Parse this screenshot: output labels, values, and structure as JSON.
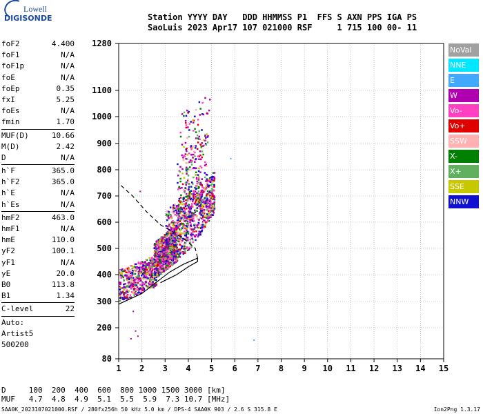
{
  "logo": {
    "line1": "Lowell",
    "line2": "DIGISONDE"
  },
  "header": {
    "line1": "Station YYYY DAY   DDD HHMMSS P1  FFS S AXN PPS IGA PS",
    "line2": "SaoLuis 2023 Apr17 107 021000 RSF     1 715 100 00- 11"
  },
  "params": [
    {
      "name": "foF2",
      "value": "4.400"
    },
    {
      "name": "foF1",
      "value": "N/A"
    },
    {
      "name": "foF1p",
      "value": "N/A"
    },
    {
      "name": "foE",
      "value": "N/A"
    },
    {
      "name": "foEp",
      "value": "0.35"
    },
    {
      "name": "fxI",
      "value": "5.25"
    },
    {
      "name": "foEs",
      "value": "N/A"
    },
    {
      "name": "fmin",
      "value": "1.70"
    },
    {
      "sep": true
    },
    {
      "name": "MUF(D)",
      "value": "10.66"
    },
    {
      "name": "M(D)",
      "value": "2.42"
    },
    {
      "name": "D",
      "value": "N/A"
    },
    {
      "sep": true
    },
    {
      "name": "h`F",
      "value": "365.0"
    },
    {
      "name": "h`F2",
      "value": "365.0"
    },
    {
      "name": "h`E",
      "value": "N/A"
    },
    {
      "name": "h`Es",
      "value": "N/A"
    },
    {
      "sep": true
    },
    {
      "name": "hmF2",
      "value": "463.0"
    },
    {
      "name": "hmF1",
      "value": "N/A"
    },
    {
      "name": "hmE",
      "value": "110.0"
    },
    {
      "name": "yF2",
      "value": "100.1"
    },
    {
      "name": "yF1",
      "value": "N/A"
    },
    {
      "name": "yE",
      "value": "20.0"
    },
    {
      "name": "B0",
      "value": "113.8"
    },
    {
      "name": "B1",
      "value": "1.34"
    },
    {
      "sep": true
    },
    {
      "name": "C-level",
      "value": "22"
    },
    {
      "sep": true
    },
    {
      "name": "Auto:",
      "value": ""
    },
    {
      "name": "Artist5",
      "value": ""
    },
    {
      "name": "500200",
      "value": ""
    }
  ],
  "legend": [
    {
      "label": "NoVal",
      "color": "#a0a0a0"
    },
    {
      "label": "NNE",
      "color": "#00e8ff"
    },
    {
      "label": "E",
      "color": "#40a8ff"
    },
    {
      "label": "W",
      "color": "#b000b0"
    },
    {
      "label": "Vo-",
      "color": "#ff40c0"
    },
    {
      "label": "Vo+",
      "color": "#e00000"
    },
    {
      "label": "SSW",
      "color": "#ffb0b0"
    },
    {
      "label": "X-",
      "color": "#008000"
    },
    {
      "label": "X+",
      "color": "#60b060"
    },
    {
      "label": "SSE",
      "color": "#c8c800"
    },
    {
      "label": "NNW",
      "color": "#1010d0"
    }
  ],
  "muf_table": {
    "row1": "D     100  200  400  600  800 1000 1500 3000 [km]",
    "row2": "MUF   4.7  4.8  4.9  5.1  5.5  5.9  7.3 10.7 [MHz]"
  },
  "footer": {
    "left": "SAA0K_2023107021000.RSF / 280fx256h 50 kHz 5.0 km / DPS-4 SAA0K 903 / 2.6 S 315.8 E",
    "right": "Ion2Png 1.3.17"
  },
  "chart_data": {
    "type": "scatter",
    "title": "",
    "xlabel": "",
    "ylabel": "",
    "xlim": [
      1,
      15
    ],
    "ylim": [
      80,
      1280
    ],
    "x_ticks": [
      "1",
      "2",
      "3",
      "4",
      "5",
      "6",
      "7",
      "8",
      "9",
      "10",
      "11",
      "12",
      "13",
      "14",
      "15"
    ],
    "y_ticks": [
      {
        "v": 80,
        "label": "80"
      },
      {
        "v": 200,
        "label": "200"
      },
      {
        "v": 300,
        "label": "300"
      },
      {
        "v": 400,
        "label": "400"
      },
      {
        "v": 500,
        "label": "500"
      },
      {
        "v": 600,
        "label": "600"
      },
      {
        "v": 700,
        "label": "700"
      },
      {
        "v": 800,
        "label": "800"
      },
      {
        "v": 900,
        "label": "900"
      },
      {
        "v": 1000,
        "label": "1000"
      },
      {
        "v": 1100,
        "label": "1100"
      },
      {
        "v": 1280,
        "label": "1280"
      }
    ],
    "y_scale": "log-like ionogram height axis",
    "grid": true,
    "profile_solid": [
      [
        1.0,
        290
      ],
      [
        2.0,
        330
      ],
      [
        2.6,
        370
      ],
      [
        3.2,
        410
      ],
      [
        3.8,
        440
      ],
      [
        4.4,
        463
      ],
      [
        4.4,
        450
      ],
      [
        4.0,
        430
      ],
      [
        3.5,
        400
      ],
      [
        2.8,
        370
      ]
    ],
    "profile_dashed": [
      [
        1.1,
        740
      ],
      [
        1.6,
        700
      ],
      [
        2.2,
        640
      ],
      [
        2.8,
        590
      ],
      [
        3.4,
        560
      ],
      [
        3.9,
        530
      ],
      [
        4.3,
        500
      ],
      [
        4.4,
        463
      ]
    ],
    "echo_clusters": [
      {
        "x_range": [
          1.0,
          2.6
        ],
        "y_range": [
          330,
          450
        ],
        "density": "high"
      },
      {
        "x_range": [
          2.5,
          3.5
        ],
        "y_range": [
          420,
          560
        ],
        "density": "very high"
      },
      {
        "x_range": [
          3.0,
          4.5
        ],
        "y_range": [
          480,
          700
        ],
        "density": "high"
      },
      {
        "x_range": [
          3.5,
          4.8
        ],
        "y_range": [
          600,
          900
        ],
        "density": "medium"
      },
      {
        "x_range": [
          3.6,
          4.9
        ],
        "y_range": [
          880,
          1050
        ],
        "density": "low"
      },
      {
        "x_range": [
          4.5,
          5.1
        ],
        "y_range": [
          600,
          760
        ],
        "density": "medium"
      }
    ],
    "outliers": [
      [
        1.6,
        265
      ],
      [
        1.7,
        190
      ],
      [
        1.8,
        170
      ],
      [
        1.5,
        160
      ],
      [
        6.8,
        155
      ],
      [
        5.8,
        845
      ],
      [
        1.9,
        720
      ]
    ]
  }
}
